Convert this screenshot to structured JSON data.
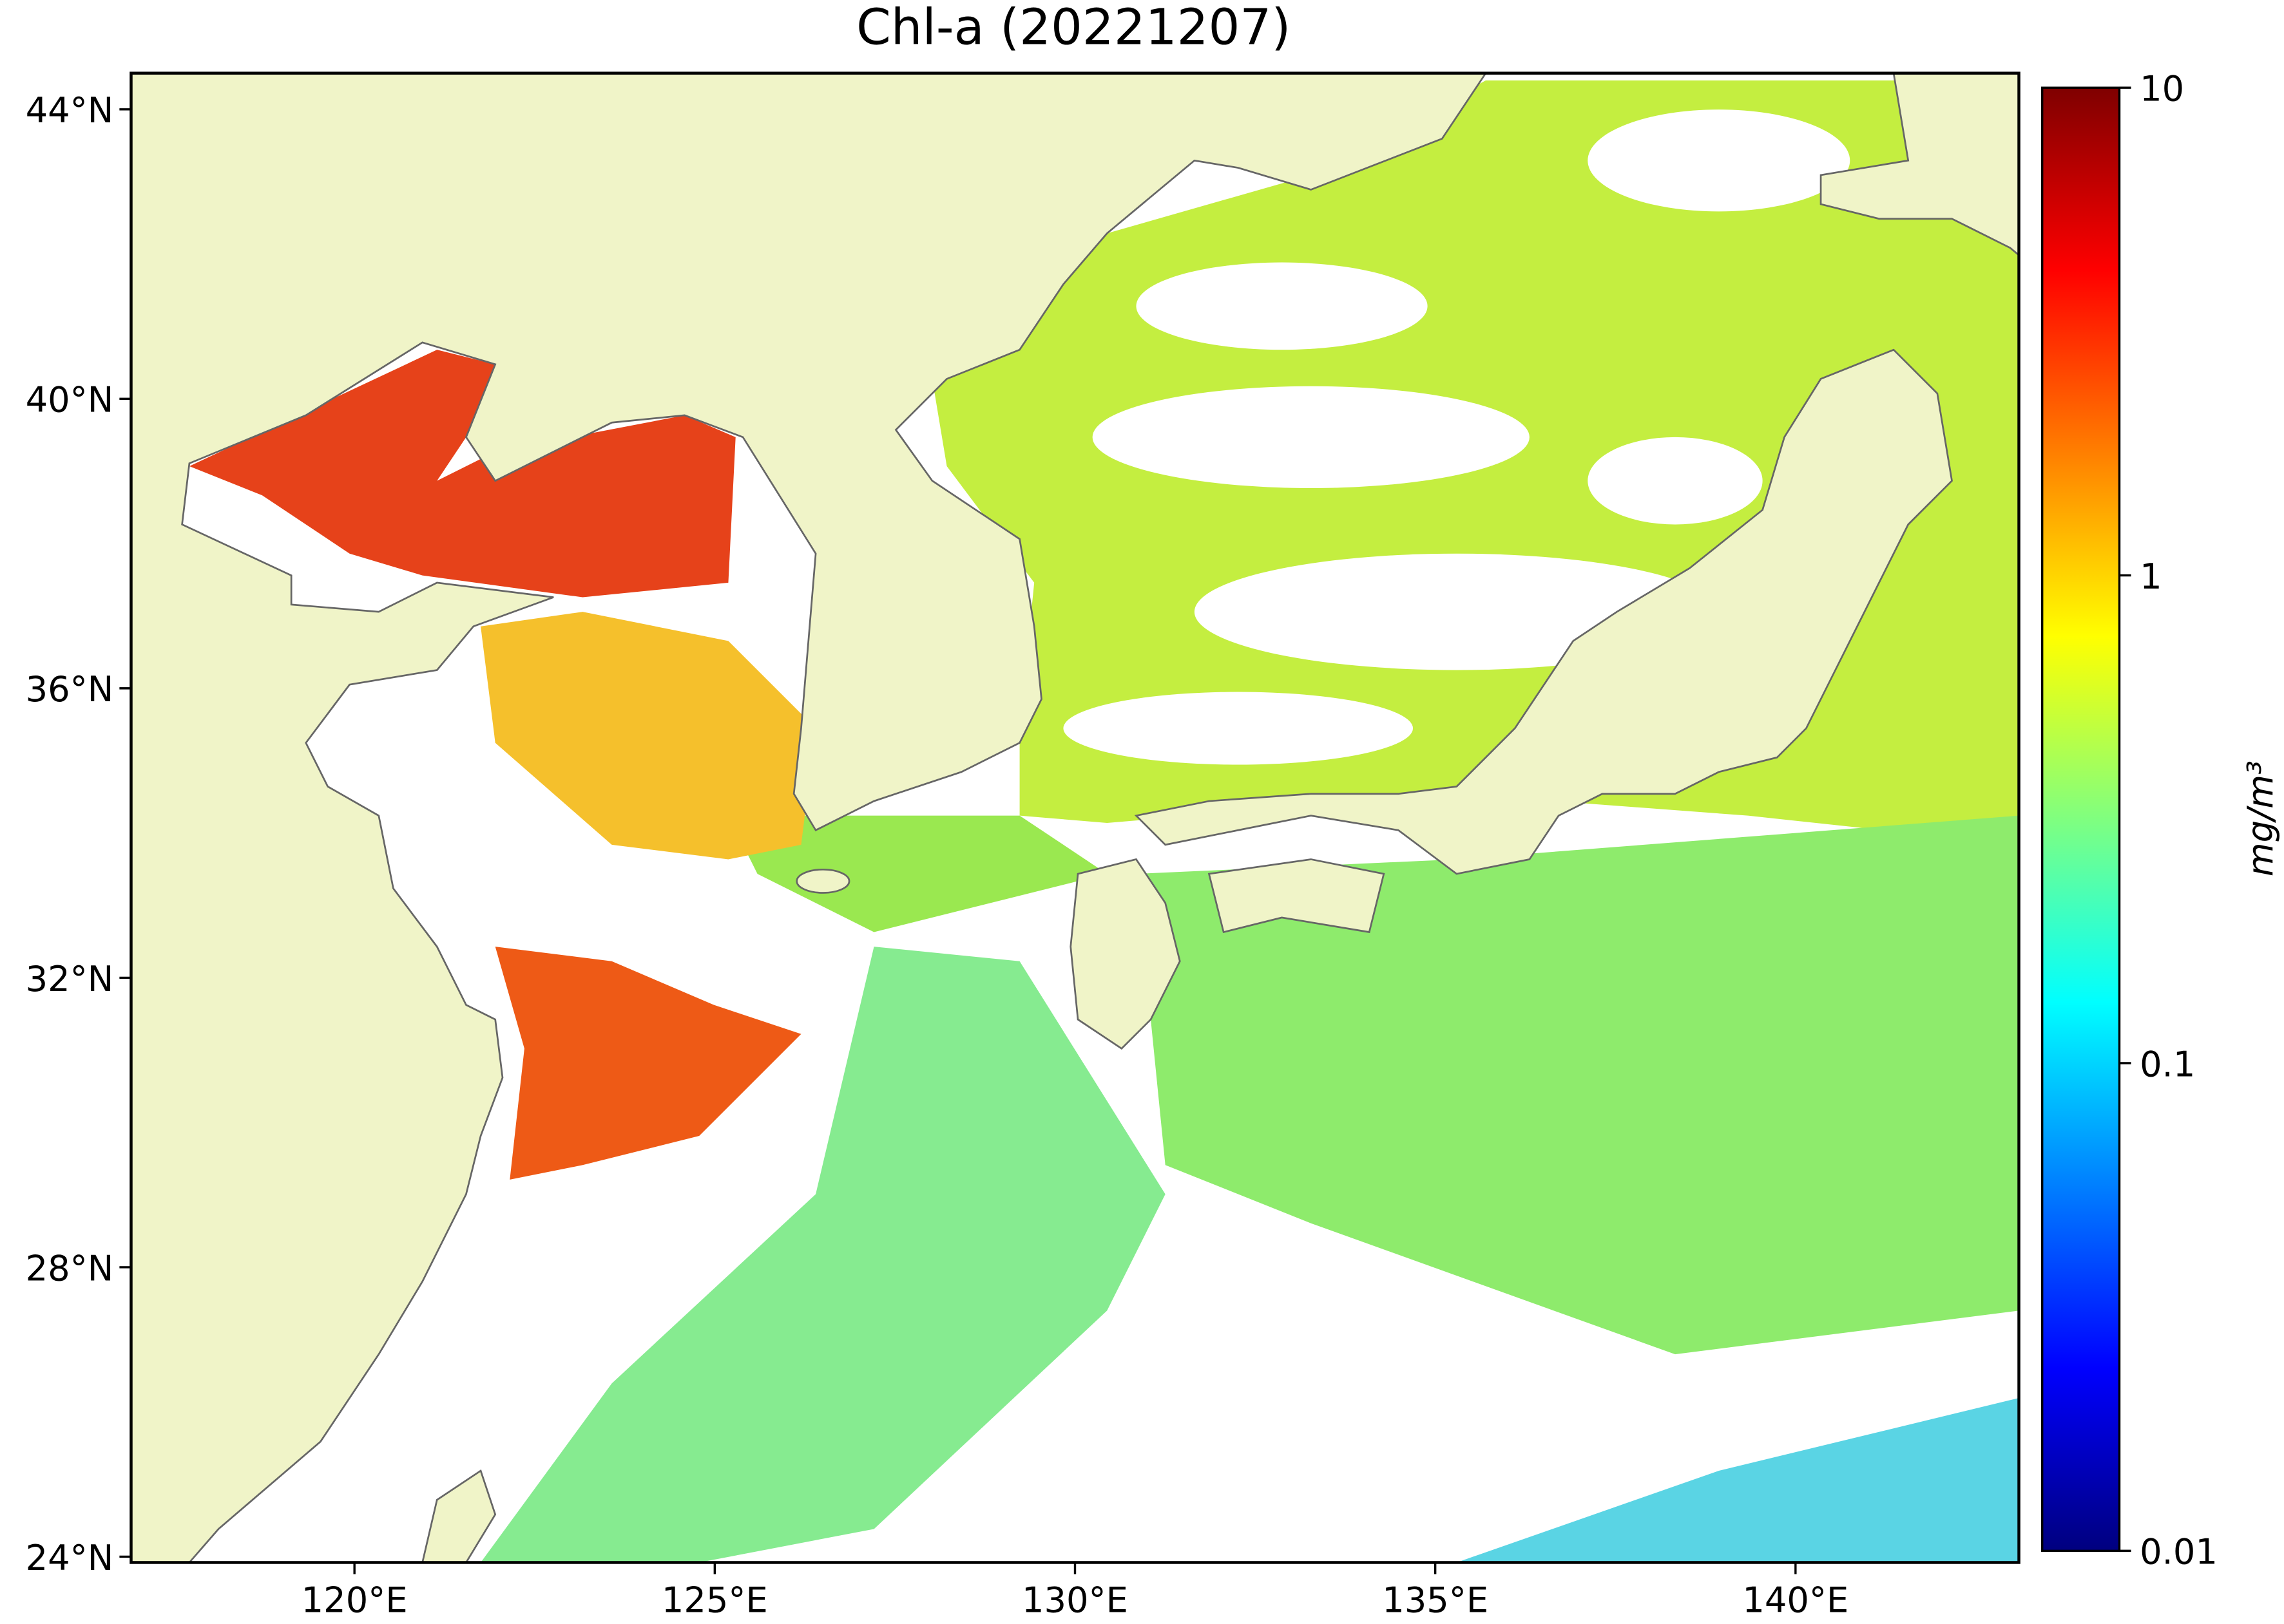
{
  "chart_data": {
    "type": "map",
    "title": "Chl-a (20221207)",
    "xlim": [
      116.9,
      143.1
    ],
    "ylim": [
      23.92,
      44.5
    ],
    "xticks": [
      {
        "value": 120,
        "label": "120°E"
      },
      {
        "value": 125,
        "label": "125°E"
      },
      {
        "value": 130,
        "label": "130°E"
      },
      {
        "value": 135,
        "label": "135°E"
      },
      {
        "value": 140,
        "label": "140°E"
      }
    ],
    "yticks": [
      {
        "value": 24,
        "label": "24°N"
      },
      {
        "value": 28,
        "label": "28°N"
      },
      {
        "value": 32,
        "label": "32°N"
      },
      {
        "value": 36,
        "label": "36°N"
      },
      {
        "value": 40,
        "label": "40°N"
      },
      {
        "value": 44,
        "label": "44°N"
      }
    ],
    "colorbar": {
      "label": "mg/m³",
      "lim": [
        0.01,
        10
      ],
      "ticks": [
        0.01,
        0.1,
        1,
        10
      ],
      "scale": "log"
    }
  }
}
